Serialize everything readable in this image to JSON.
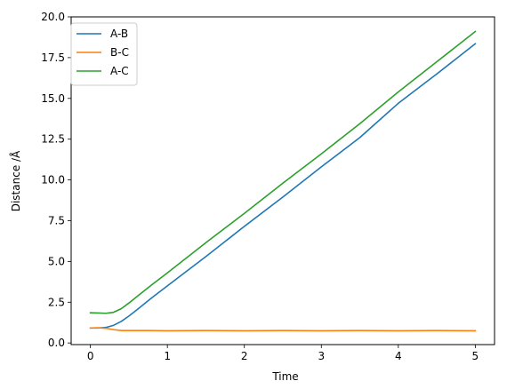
{
  "chart_data": {
    "type": "line",
    "xlabel": "Time",
    "ylabel": "Distance /Å",
    "xlim": [
      -0.25,
      5.25
    ],
    "ylim": [
      -0.1,
      20.0
    ],
    "xticks": [
      0,
      1,
      2,
      3,
      4,
      5
    ],
    "xtick_labels": [
      "0",
      "1",
      "2",
      "3",
      "4",
      "5"
    ],
    "yticks": [
      0.0,
      2.5,
      5.0,
      7.5,
      10.0,
      12.5,
      15.0,
      17.5,
      20.0
    ],
    "ytick_labels": [
      "0.0",
      "2.5",
      "5.0",
      "7.5",
      "10.0",
      "12.5",
      "15.0",
      "17.5",
      "20.0"
    ],
    "grid": false,
    "legend_position": "top-left",
    "series": [
      {
        "name": "A-B",
        "color": "#1f77b4",
        "x": [
          0,
          0.1,
          0.2,
          0.3,
          0.4,
          0.5,
          0.6,
          0.8,
          1.0,
          1.5,
          2.0,
          2.5,
          3.0,
          3.5,
          4.0,
          4.5,
          5.0
        ],
        "y": [
          0.92,
          0.92,
          0.95,
          1.08,
          1.32,
          1.65,
          2.02,
          2.78,
          3.5,
          5.3,
          7.15,
          8.95,
          10.8,
          12.6,
          14.7,
          16.5,
          18.35
        ]
      },
      {
        "name": "B-C",
        "color": "#ff7f0e",
        "x": [
          0,
          0.1,
          0.2,
          0.3,
          0.4,
          0.5,
          0.75,
          1.0,
          1.5,
          2.0,
          2.5,
          3.0,
          3.5,
          4.0,
          4.5,
          5.0
        ],
        "y": [
          0.92,
          0.93,
          0.9,
          0.82,
          0.76,
          0.76,
          0.76,
          0.75,
          0.76,
          0.75,
          0.76,
          0.75,
          0.76,
          0.75,
          0.76,
          0.75
        ]
      },
      {
        "name": "A-C",
        "color": "#2ca02c",
        "x": [
          0,
          0.1,
          0.2,
          0.3,
          0.4,
          0.5,
          0.6,
          0.8,
          1.0,
          1.5,
          2.0,
          2.5,
          3.0,
          3.5,
          4.0,
          4.5,
          5.0
        ],
        "y": [
          1.85,
          1.84,
          1.82,
          1.88,
          2.1,
          2.45,
          2.83,
          3.58,
          4.3,
          6.15,
          7.95,
          9.8,
          11.6,
          13.45,
          15.4,
          17.25,
          19.1
        ]
      }
    ]
  }
}
